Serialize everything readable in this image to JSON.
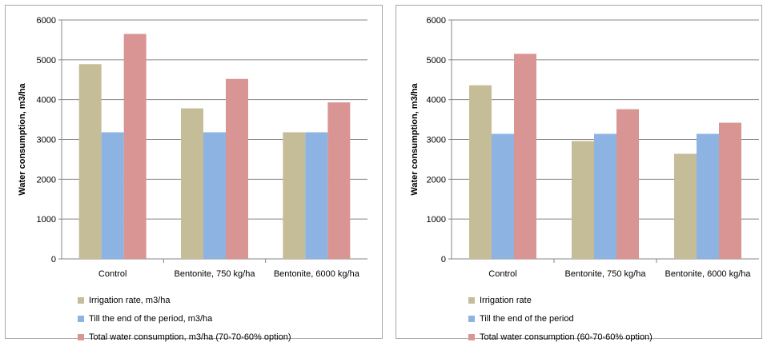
{
  "chart_data": [
    {
      "type": "bar",
      "ylabel": "Water consumption, m3/ha",
      "ylim": [
        0,
        6000
      ],
      "yticks": [
        "0",
        "1000",
        "2000",
        "3000",
        "4000",
        "5000",
        "6000"
      ],
      "grid": true,
      "legend_position": "bottom",
      "categories": [
        "Control",
        "Bentonite, 750 kg/ha",
        "Bentonite, 6000 kg/ha"
      ],
      "series": [
        {
          "name": "Irrigation rate, m3/ha",
          "color": "#c4bd97",
          "values": [
            4890,
            3780,
            3180
          ]
        },
        {
          "name": "Till the end of the period, m3/ha",
          "color": "#8db3e2",
          "values": [
            3180,
            3180,
            3180
          ]
        },
        {
          "name": "Total water consumption, m3/ha (70-70-60% option)",
          "color": "#d99594",
          "values": [
            5650,
            4520,
            3930
          ]
        }
      ]
    },
    {
      "type": "bar",
      "ylabel": "Water consumption, m3/ha",
      "ylim": [
        0,
        6000
      ],
      "yticks": [
        "0",
        "1000",
        "2000",
        "3000",
        "4000",
        "5000",
        "6000"
      ],
      "grid": true,
      "legend_position": "bottom",
      "categories": [
        "Control",
        "Bentonite, 750 kg/ha",
        "Bentonite, 6000 kg/ha"
      ],
      "series": [
        {
          "name": "Irrigation rate",
          "color": "#c4bd97",
          "values": [
            4360,
            2960,
            2640
          ]
        },
        {
          "name": "Till the end of the period",
          "color": "#8db3e2",
          "values": [
            3140,
            3140,
            3140
          ]
        },
        {
          "name": "Total water consumption (60-70-60% option)",
          "color": "#d99594",
          "values": [
            5150,
            3760,
            3420
          ]
        }
      ]
    }
  ]
}
